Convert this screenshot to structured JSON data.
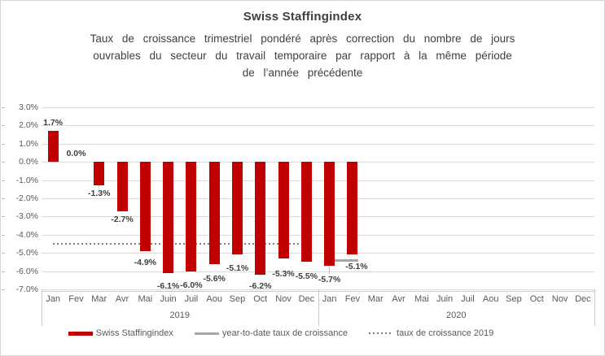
{
  "title": "Swiss Staffingindex",
  "subtitle_lines": [
    "Taux de croissance trimestriel pondéré après correction du nombre de jours",
    "ouvrables du secteur du travail temporaire par rapport à la même période",
    "de l’année précédente"
  ],
  "colors": {
    "bar": "#C00000",
    "gridline": "#D9D9D9",
    "axis_text": "#595959",
    "data_label_text": "#3F3F3F",
    "reference_dotted": "#7F7F7F",
    "reference_ytd": "#A6A6A6",
    "frame_border": "#D6D6D6"
  },
  "y_axis": {
    "tick_labels": [
      "3.0%",
      "2.0%",
      "1.0%",
      "0.0%",
      "-1.0%",
      "-2.0%",
      "-3.0%",
      "-4.0%",
      "-5.0%",
      "-6.0%",
      "-7.0%"
    ],
    "max": 3,
    "min": -7,
    "step": 1
  },
  "x_axis": {
    "months": [
      "Jan",
      "Fev",
      "Mar",
      "Avr",
      "Mai",
      "Juin",
      "Juil",
      "Aou",
      "Sep",
      "Oct",
      "Nov",
      "Dec"
    ],
    "years": [
      "2019",
      "2020"
    ]
  },
  "legend": {
    "items": [
      {
        "label": "Swiss Staffingindex",
        "swatch": "bar"
      },
      {
        "label": "year-to-date taux de croissance",
        "swatch": "line"
      },
      {
        "label": "taux de croissance 2019",
        "swatch": "dotted"
      }
    ]
  },
  "chart_data": {
    "type": "bar",
    "title": "Swiss Staffingindex",
    "ylim": [
      -7,
      3
    ],
    "grid": true,
    "legend_position": "bottom",
    "categories": [
      "Jan 2019",
      "Fev 2019",
      "Mar 2019",
      "Avr 2019",
      "Mai 2019",
      "Juin 2019",
      "Juil 2019",
      "Aou 2019",
      "Sep 2019",
      "Oct 2019",
      "Nov 2019",
      "Dec 2019",
      "Jan 2020",
      "Fev 2020",
      "Mar 2020",
      "Avr 2020",
      "Mai 2020",
      "Juin 2020",
      "Juil 2020",
      "Aou 2020",
      "Sep 2020",
      "Oct 2020",
      "Nov 2020",
      "Dec 2020"
    ],
    "series": [
      {
        "name": "Swiss Staffingindex",
        "color": "#C00000",
        "values": [
          1.7,
          0.0,
          -1.3,
          -2.7,
          -4.9,
          -6.1,
          -6.0,
          -5.6,
          -5.1,
          -6.2,
          -5.3,
          -5.5,
          -5.7,
          -5.1,
          null,
          null,
          null,
          null,
          null,
          null,
          null,
          null,
          null,
          null
        ],
        "labels": [
          "1.7%",
          "0.0%",
          "-1.3%",
          "-2.7%",
          "-4.9%",
          "-6.1%",
          "-6.0%",
          "-5.6%",
          "-5.1%",
          "-6.2%",
          "-5.3%",
          "-5.5%",
          "-5.7%",
          "-5.1%"
        ]
      }
    ],
    "reference_lines": [
      {
        "name": "taux de croissance 2019",
        "value": -4.5,
        "style": "dotted",
        "color": "#7F7F7F",
        "from_index": 0,
        "to_index": 11
      },
      {
        "name": "year-to-date taux de croissance",
        "value": -5.4,
        "style": "solid",
        "color": "#A6A6A6",
        "from_index": 12,
        "to_index": 13
      }
    ],
    "label_layout": {
      "dy": [
        3,
        3,
        4,
        4,
        8,
        10,
        11,
        12,
        11,
        8,
        13,
        12,
        11,
        9
      ],
      "dx": [
        0,
        0,
        0,
        0,
        0,
        0,
        0,
        0,
        0,
        0,
        0,
        0,
        0,
        5
      ],
      "leader_indices": [
        2,
        12
      ]
    }
  }
}
